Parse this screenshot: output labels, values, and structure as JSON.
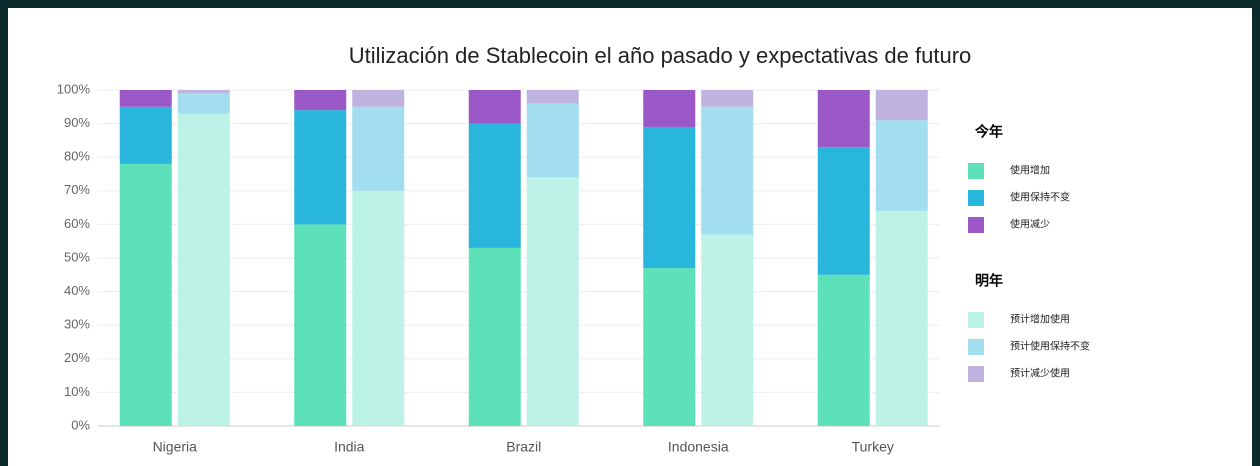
{
  "chart_data": {
    "type": "bar",
    "title": "Utilización de Stablecoin el año pasado y expectativas de futuro",
    "categories": [
      "Nigeria",
      "India",
      "Brazil",
      "Indonesia",
      "Turkey"
    ],
    "groups": [
      {
        "name": "今年",
        "series": [
          {
            "name": "使用增加",
            "color": "#5ce1b9",
            "values": [
              78,
              60,
              53,
              47,
              45
            ]
          },
          {
            "name": "使用保持不变",
            "color": "#29b6dc",
            "values": [
              17,
              34,
              37,
              42,
              38
            ]
          },
          {
            "name": "使用减少",
            "color": "#9b59c8",
            "values": [
              5,
              6,
              10,
              11,
              17
            ]
          }
        ]
      },
      {
        "name": "明年",
        "series": [
          {
            "name": "预计增加使用",
            "color": "#bdf3e6",
            "values": [
              93,
              70,
              74,
              57,
              64
            ]
          },
          {
            "name": "预计使用保持不变",
            "color": "#a2def0",
            "values": [
              6,
              25,
              22,
              38,
              27
            ]
          },
          {
            "name": "预计减少使用",
            "color": "#bfb4e0",
            "values": [
              1,
              5,
              4,
              5,
              9
            ]
          }
        ]
      }
    ],
    "ylim": [
      0,
      100
    ],
    "yticks": [
      {
        "value": 0,
        "label": "0%"
      },
      {
        "value": 10,
        "label": "10%"
      },
      {
        "value": 20,
        "label": "20%"
      },
      {
        "value": 30,
        "label": "30%"
      },
      {
        "value": 40,
        "label": "40%"
      },
      {
        "value": 50,
        "label": "50%"
      },
      {
        "value": 60,
        "label": "60%"
      },
      {
        "value": 70,
        "label": "70%"
      },
      {
        "value": 80,
        "label": "80%"
      },
      {
        "value": 90,
        "label": "90%"
      },
      {
        "value": 100,
        "label": "100%"
      }
    ],
    "grid": true
  }
}
